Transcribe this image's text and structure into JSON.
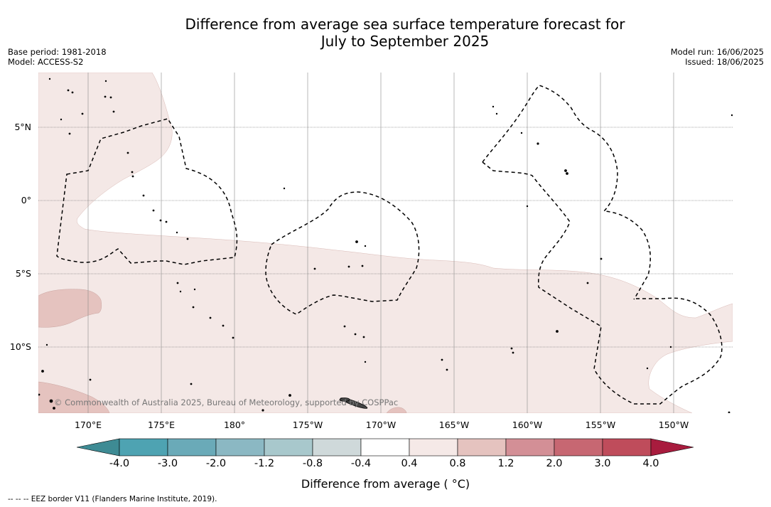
{
  "title": {
    "line1": "Difference from average sea surface temperature forecast for",
    "line2": "July to September 2025"
  },
  "meta": {
    "base_period": "Base period: 1981-2018",
    "model": "Model: ACCESS-S2",
    "model_run": "Model run: 16/06/2025",
    "issued": "Issued: 18/06/2025"
  },
  "lat_labels": [
    "5°N",
    "0°",
    "5°S",
    "10°S"
  ],
  "lon_labels": [
    "170°E",
    "175°E",
    "180°",
    "175°W",
    "170°W",
    "165°W",
    "160°W",
    "155°W",
    "150°W"
  ],
  "copyright": "© Commonwealth of Australia 2025, Bureau of Meteorology, supported by COSPPac",
  "colorbar": {
    "title": "Difference from average ( °C)",
    "ticks": [
      "-4.0",
      "-3.0",
      "-2.0",
      "-1.2",
      "-0.8",
      "-0.4",
      "0.4",
      "0.8",
      "1.2",
      "2.0",
      "3.0",
      "4.0"
    ],
    "colors": [
      "#3e8b94",
      "#4ea3b2",
      "#6aaab8",
      "#8bb8c3",
      "#a8c8cc",
      "#cfd9da",
      "#ffffff",
      "#f5e9e7",
      "#e5c3bf",
      "#d38f96",
      "#c76772",
      "#bf4c5b",
      "#a81c3e"
    ]
  },
  "map_colors": {
    "anomaly_04_08": "#f4e8e6",
    "anomaly_08_12": "#e5c3bf",
    "eez_border": "#000000"
  },
  "footnote": "--  --  -- EEZ border V11 (Flanders Marine Institute, 2019)."
}
